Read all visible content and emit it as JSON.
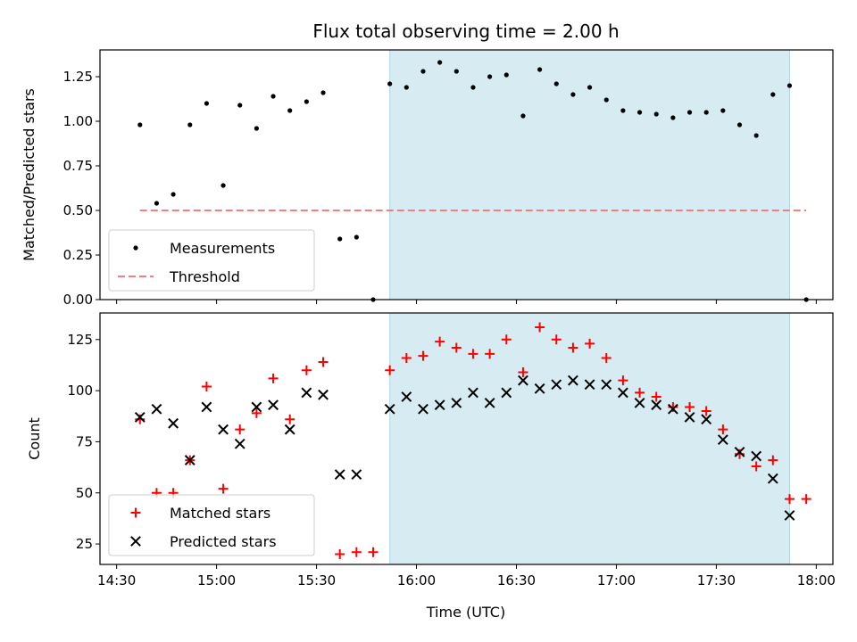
{
  "chart_data": [
    {
      "type": "scatter",
      "title": "Flux total observing time = 2.00 h",
      "ylabel": "Matched/Predicted stars",
      "xlabel": "",
      "xlim": [
        "14:25",
        "18:05"
      ],
      "ylim": [
        0,
        1.4
      ],
      "x_ticks": [
        "14:30",
        "15:00",
        "15:30",
        "16:00",
        "16:30",
        "17:00",
        "17:30",
        "18:00"
      ],
      "y_ticks": [
        "0.00",
        "0.25",
        "0.50",
        "0.75",
        "1.00",
        "1.25"
      ],
      "y_tick_values": [
        0,
        0.25,
        0.5,
        0.75,
        1.0,
        1.25
      ],
      "highlight_span": [
        "15:52",
        "17:52"
      ],
      "highlight_color": "#add8e6",
      "legend_position": "lower-left",
      "series": [
        {
          "name": "Measurements",
          "marker": "dot",
          "color": "#000000",
          "x": [
            "14:37",
            "14:42",
            "14:47",
            "14:52",
            "14:57",
            "15:02",
            "15:07",
            "15:12",
            "15:17",
            "15:22",
            "15:27",
            "15:32",
            "15:37",
            "15:42",
            "15:47",
            "15:52",
            "15:57",
            "16:02",
            "16:07",
            "16:12",
            "16:17",
            "16:22",
            "16:27",
            "16:32",
            "16:37",
            "16:42",
            "16:47",
            "16:52",
            "16:57",
            "17:02",
            "17:07",
            "17:12",
            "17:17",
            "17:22",
            "17:27",
            "17:32",
            "17:37",
            "17:42",
            "17:47",
            "17:52",
            "17:57"
          ],
          "y": [
            0.98,
            0.54,
            0.59,
            0.98,
            1.1,
            0.64,
            1.09,
            0.96,
            1.14,
            1.06,
            1.11,
            1.16,
            0.34,
            0.35,
            0.0,
            1.21,
            1.19,
            1.28,
            1.33,
            1.28,
            1.19,
            1.25,
            1.26,
            1.03,
            1.29,
            1.21,
            1.15,
            1.19,
            1.12,
            1.06,
            1.05,
            1.04,
            1.02,
            1.05,
            1.05,
            1.06,
            0.98,
            0.92,
            1.15,
            1.2,
            0.0
          ]
        },
        {
          "name": "Threshold",
          "marker": "dashed-line",
          "color": "#f08080",
          "x": [
            "14:37",
            "17:57"
          ],
          "y": [
            0.5,
            0.5
          ]
        }
      ]
    },
    {
      "type": "scatter",
      "title": "",
      "ylabel": "Count",
      "xlabel": "Time (UTC)",
      "xlim": [
        "14:25",
        "18:05"
      ],
      "ylim": [
        15,
        138
      ],
      "x_ticks": [
        "14:30",
        "15:00",
        "15:30",
        "16:00",
        "16:30",
        "17:00",
        "17:30",
        "18:00"
      ],
      "y_ticks": [
        "25",
        "50",
        "75",
        "100",
        "125"
      ],
      "y_tick_values": [
        25,
        50,
        75,
        100,
        125
      ],
      "highlight_span": [
        "15:52",
        "17:52"
      ],
      "highlight_color": "#add8e6",
      "legend_position": "lower-left",
      "series": [
        {
          "name": "Matched stars",
          "marker": "plus",
          "color": "#ff0000",
          "x": [
            "14:37",
            "14:42",
            "14:47",
            "14:52",
            "14:57",
            "15:02",
            "15:07",
            "15:12",
            "15:17",
            "15:22",
            "15:27",
            "15:32",
            "15:37",
            "15:42",
            "15:47",
            "15:52",
            "15:57",
            "16:02",
            "16:07",
            "16:12",
            "16:17",
            "16:22",
            "16:27",
            "16:32",
            "16:37",
            "16:42",
            "16:47",
            "16:52",
            "16:57",
            "17:02",
            "17:07",
            "17:12",
            "17:17",
            "17:22",
            "17:27",
            "17:32",
            "17:37",
            "17:42",
            "17:47",
            "17:52",
            "17:57"
          ],
          "y": [
            86,
            50,
            50,
            66,
            102,
            52,
            81,
            89,
            106,
            86,
            110,
            114,
            20,
            21,
            21,
            110,
            116,
            117,
            124,
            121,
            118,
            118,
            125,
            109,
            131,
            125,
            121,
            123,
            116,
            105,
            99,
            97,
            92,
            92,
            90,
            81,
            69,
            63,
            66,
            47,
            47
          ]
        },
        {
          "name": "Predicted stars",
          "marker": "x",
          "color": "#000000",
          "x": [
            "14:37",
            "14:42",
            "14:47",
            "14:52",
            "14:57",
            "15:02",
            "15:07",
            "15:12",
            "15:17",
            "15:22",
            "15:27",
            "15:32",
            "15:37",
            "15:42",
            "15:52",
            "15:57",
            "16:02",
            "16:07",
            "16:12",
            "16:17",
            "16:22",
            "16:27",
            "16:32",
            "16:37",
            "16:42",
            "16:47",
            "16:52",
            "16:57",
            "17:02",
            "17:07",
            "17:12",
            "17:17",
            "17:22",
            "17:27",
            "17:32",
            "17:37",
            "17:42",
            "17:47",
            "17:52"
          ],
          "y": [
            87,
            91,
            84,
            66,
            92,
            81,
            74,
            92,
            93,
            81,
            99,
            98,
            59,
            59,
            91,
            97,
            91,
            93,
            94,
            99,
            94,
            99,
            105,
            101,
            103,
            105,
            103,
            103,
            99,
            94,
            93,
            91,
            87,
            86,
            76,
            70,
            68,
            57,
            39
          ]
        }
      ]
    }
  ]
}
